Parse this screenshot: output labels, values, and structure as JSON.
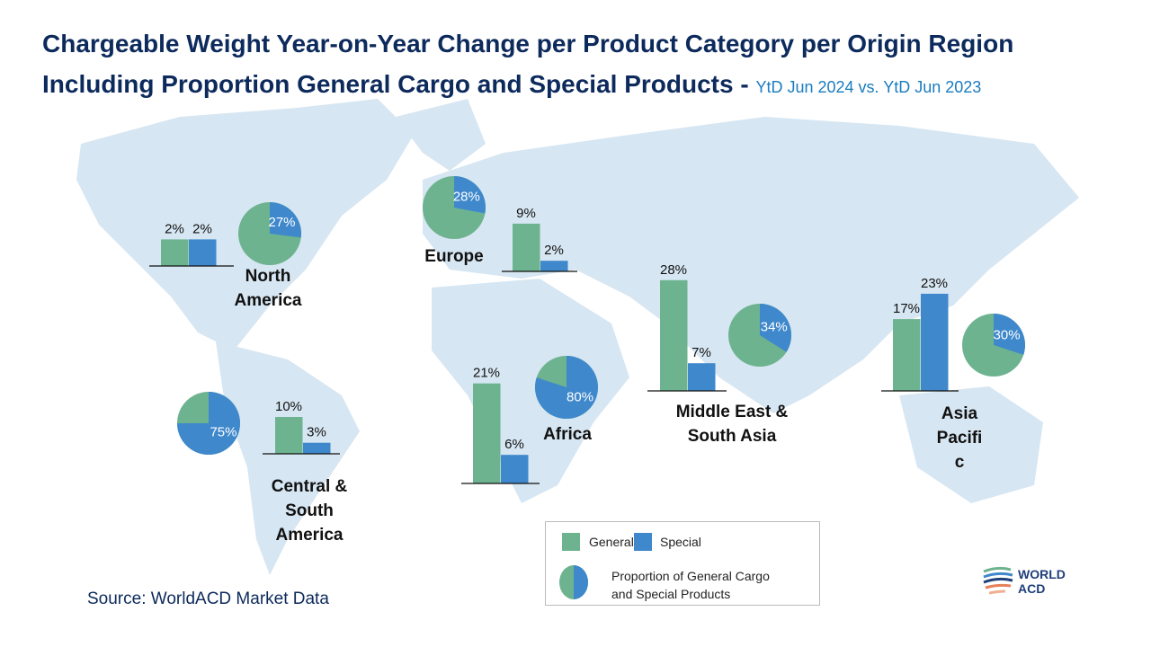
{
  "title_line1": "Chargeable Weight Year-on-Year Change per Product Category per Origin Region",
  "title_line2": "Including Proportion General Cargo and Special Products",
  "subtitle": "YtD Jun 2024 vs. YtD Jun 2023",
  "source": "Source: WorldACD Market Data",
  "logo": "WORLD ACD",
  "colors": {
    "general": "#6db38f",
    "special": "#3f88cc",
    "title": "#0d2a5c"
  },
  "legend": {
    "general": "General",
    "special": "Special",
    "proportion_line1": "Proportion of General Cargo",
    "proportion_line2": "and Special Products"
  },
  "chart_data": {
    "type": "bar",
    "title": "Chargeable Weight Year-on-Year Change per Product Category per Origin Region",
    "series_names": [
      "General",
      "Special"
    ],
    "unit": "%",
    "regions": [
      {
        "name": "North America",
        "label_lines": [
          "North",
          "America"
        ],
        "general": 2,
        "special": 2,
        "special_share": 27
      },
      {
        "name": "Europe",
        "label_lines": [
          "Europe"
        ],
        "general": 9,
        "special": 2,
        "special_share": 28
      },
      {
        "name": "Central & South America",
        "label_lines": [
          "Central &",
          "South",
          "America"
        ],
        "general": 10,
        "special": 3,
        "special_share": 75
      },
      {
        "name": "Africa",
        "label_lines": [
          "Africa"
        ],
        "general": 21,
        "special": 6,
        "special_share": 80
      },
      {
        "name": "Middle East & South Asia",
        "label_lines": [
          "Middle East &",
          "South Asia"
        ],
        "general": 28,
        "special": 7,
        "special_share": 34
      },
      {
        "name": "Asia Pacific",
        "label_lines": [
          "Asia",
          "Pacifi",
          "c"
        ],
        "general": 17,
        "special": 23,
        "special_share": 30
      }
    ]
  }
}
